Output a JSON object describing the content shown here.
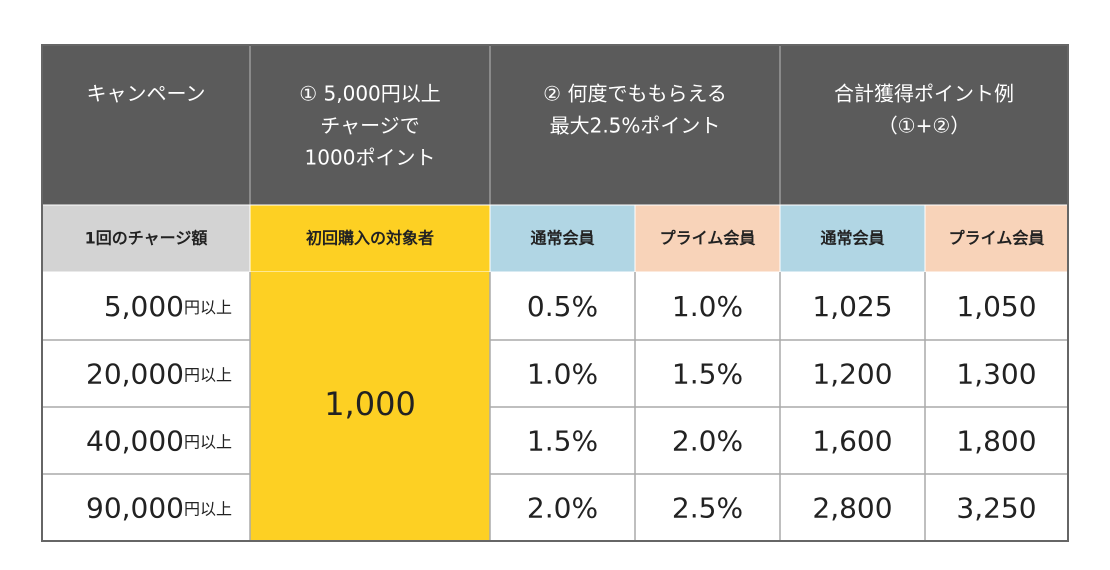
{
  "table": {
    "header": [
      {
        "lines": [
          "キャンペーン"
        ]
      },
      {
        "lines": [
          "① 5,000円以上",
          "チャージで",
          "1000ポイント"
        ]
      },
      {
        "lines": [
          "② 何度でももらえる",
          "最大2.5%ポイント"
        ]
      },
      {
        "lines": [
          "合計獲得ポイント例",
          "（①+②）"
        ]
      }
    ],
    "subheader": [
      "1回のチャージ額",
      "初回購入の対象者",
      "通常会員",
      "プライム会員",
      "通常会員",
      "プライム会員"
    ],
    "first_purchase_bonus": "1,000",
    "rows": [
      {
        "charge": "5,000",
        "unit": "円以上",
        "cells": [
          "0.5%",
          "1.0%",
          "1,025",
          "1,050"
        ]
      },
      {
        "charge": "20,000",
        "unit": "円以上",
        "cells": [
          "1.0%",
          "1.5%",
          "1,200",
          "1,300"
        ]
      },
      {
        "charge": "40,000",
        "unit": "円以上",
        "cells": [
          "1.5%",
          "2.0%",
          "1,600",
          "1,800"
        ]
      },
      {
        "charge": "90,000",
        "unit": "円以上",
        "cells": [
          "2.0%",
          "2.5%",
          "2,800",
          "3,250"
        ]
      }
    ]
  }
}
